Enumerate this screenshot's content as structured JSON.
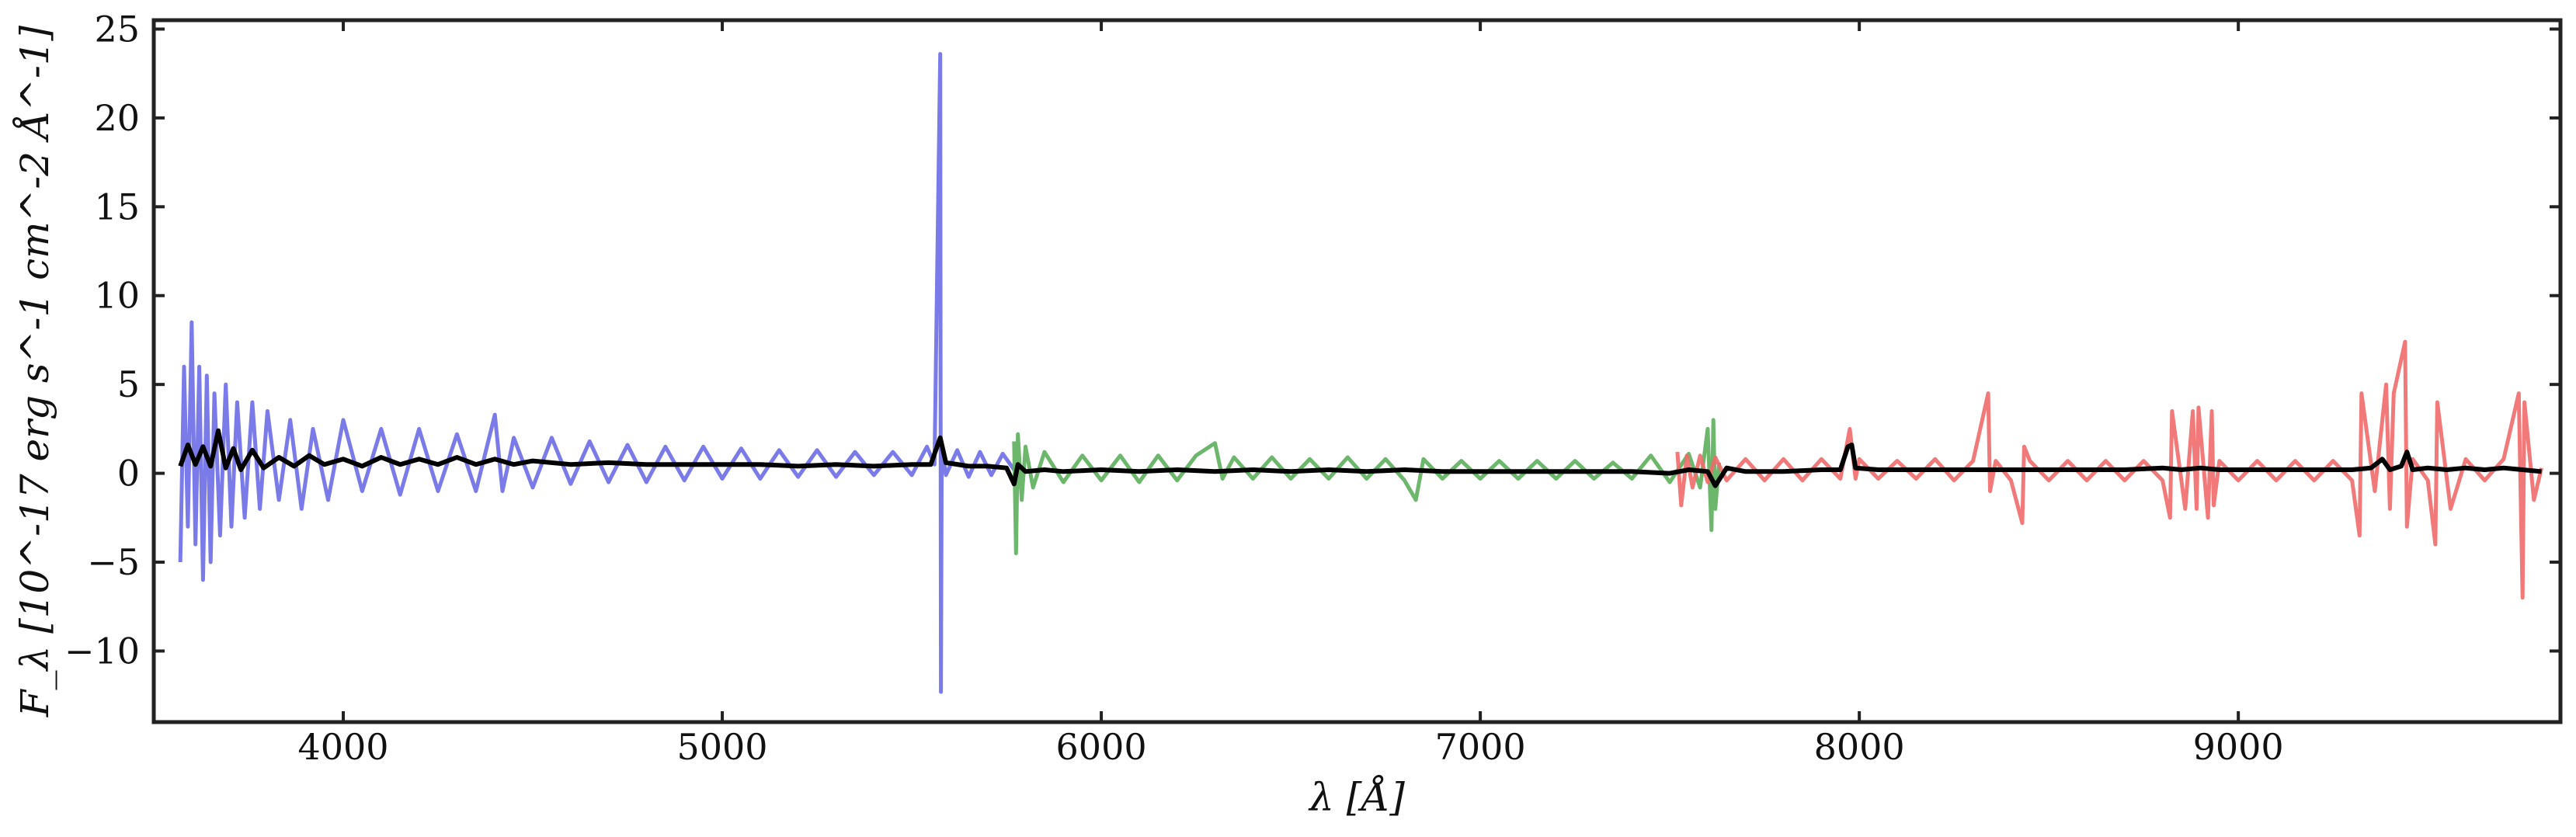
{
  "chart_data": {
    "type": "line",
    "title": "",
    "xlabel": "λ [Å]",
    "ylabel": "F_λ [10^-17 erg s^-1 cm^-2 Å^-1]",
    "xlim": [
      3500,
      9850
    ],
    "ylim": [
      -14,
      25.5
    ],
    "x_ticks": [
      4000,
      5000,
      6000,
      7000,
      8000,
      9000
    ],
    "y_ticks": [
      -10,
      -5,
      0,
      5,
      10,
      15,
      20,
      25
    ],
    "grid": false,
    "legend": "none",
    "series": [
      {
        "color": "#6b6be6",
        "opacity": 0.9,
        "x": [
          3570,
          3580,
          3590,
          3600,
          3610,
          3620,
          3630,
          3640,
          3650,
          3660,
          3675,
          3690,
          3705,
          3720,
          3740,
          3760,
          3780,
          3800,
          3830,
          3860,
          3890,
          3920,
          3960,
          4000,
          4050,
          4100,
          4150,
          4200,
          4250,
          4300,
          4350,
          4400,
          4420,
          4450,
          4500,
          4550,
          4600,
          4650,
          4700,
          4750,
          4800,
          4850,
          4900,
          4950,
          5000,
          5050,
          5100,
          5150,
          5200,
          5250,
          5300,
          5350,
          5400,
          5450,
          5500,
          5540,
          5560,
          5575,
          5577,
          5579,
          5581,
          5590,
          5620,
          5650,
          5680,
          5710,
          5740,
          5770
        ],
        "y": [
          -5,
          6,
          -3,
          8.5,
          -4,
          6,
          -6,
          5.5,
          -5,
          4.5,
          -3.5,
          5,
          -3,
          4,
          -2.5,
          4,
          -2,
          3.5,
          -1.5,
          3,
          -2,
          2.5,
          -1.5,
          3,
          -1,
          2.5,
          -1.2,
          2.5,
          -1,
          2.2,
          -1,
          3.3,
          -1,
          2,
          -0.8,
          2,
          -0.6,
          1.8,
          -0.5,
          1.6,
          -0.5,
          1.5,
          -0.4,
          1.5,
          -0.3,
          1.4,
          -0.3,
          1.3,
          -0.2,
          1.3,
          -0.2,
          1.2,
          -0.1,
          1.2,
          -0.1,
          1.5,
          0.5,
          23.6,
          -12.3,
          0.8,
          1.2,
          -0.1,
          1.3,
          -0.2,
          1.2,
          -0.1,
          1.1,
          0.2
        ]
      },
      {
        "color": "#5caf5c",
        "opacity": 0.9,
        "x": [
          5770,
          5775,
          5780,
          5790,
          5800,
          5820,
          5850,
          5900,
          5950,
          6000,
          6050,
          6100,
          6150,
          6200,
          6250,
          6300,
          6320,
          6350,
          6400,
          6450,
          6500,
          6550,
          6600,
          6650,
          6700,
          6750,
          6800,
          6830,
          6850,
          6900,
          6950,
          7000,
          7050,
          7100,
          7150,
          7200,
          7250,
          7300,
          7350,
          7400,
          7450,
          7500,
          7550,
          7580,
          7600,
          7610,
          7615,
          7620,
          7630
        ],
        "y": [
          1.8,
          -4.5,
          2.2,
          -1.5,
          1.5,
          -0.8,
          1.2,
          -0.5,
          1,
          -0.4,
          1,
          -0.5,
          1,
          -0.4,
          1,
          1.7,
          -0.3,
          0.9,
          -0.3,
          0.9,
          -0.3,
          0.8,
          -0.3,
          0.9,
          -0.3,
          0.8,
          -0.4,
          -1.5,
          0.8,
          -0.3,
          0.7,
          -0.3,
          0.7,
          -0.3,
          0.7,
          -0.3,
          0.7,
          -0.3,
          0.6,
          -0.3,
          1,
          -0.5,
          1.1,
          -0.8,
          2.5,
          -3.2,
          3,
          -2,
          0.6
        ]
      },
      {
        "color": "#ef6a6a",
        "opacity": 0.9,
        "x": [
          7520,
          7530,
          7545,
          7560,
          7580,
          7600,
          7620,
          7650,
          7700,
          7750,
          7800,
          7850,
          7900,
          7950,
          7975,
          7990,
          8000,
          8050,
          8100,
          8150,
          8200,
          8250,
          8300,
          8340,
          8345,
          8360,
          8400,
          8430,
          8435,
          8450,
          8500,
          8550,
          8600,
          8650,
          8700,
          8750,
          8800,
          8820,
          8825,
          8860,
          8880,
          8890,
          8895,
          8920,
          8930,
          8935,
          8950,
          9000,
          9050,
          9100,
          9150,
          9200,
          9250,
          9300,
          9320,
          9325,
          9360,
          9390,
          9400,
          9410,
          9440,
          9445,
          9460,
          9500,
          9520,
          9525,
          9560,
          9600,
          9650,
          9700,
          9740,
          9750,
          9755,
          9780,
          9800
        ],
        "y": [
          1.2,
          -1.8,
          1,
          -0.8,
          1,
          -0.5,
          0.9,
          -0.4,
          0.8,
          -0.4,
          0.8,
          -0.4,
          0.8,
          -0.3,
          2.5,
          -0.3,
          0.8,
          -0.3,
          0.7,
          -0.3,
          0.8,
          -0.4,
          0.7,
          4.5,
          -1,
          0.7,
          -0.4,
          -2.8,
          1.5,
          0.7,
          -0.4,
          0.7,
          -0.4,
          0.7,
          -0.4,
          0.7,
          -0.4,
          -2.5,
          3.5,
          -2,
          3.5,
          -2,
          3.7,
          -2.5,
          3.5,
          -1.8,
          0.7,
          -0.4,
          0.7,
          -0.4,
          0.7,
          -0.4,
          0.7,
          -0.4,
          -3.5,
          4.5,
          -1,
          5,
          -2,
          4.5,
          7.4,
          -3,
          0.8,
          -0.4,
          -4,
          4,
          -2,
          0.8,
          -0.4,
          0.8,
          4.5,
          -7,
          4,
          -1.5,
          0.3
        ]
      },
      {
        "color": "#000000",
        "opacity": 1,
        "x": [
          3570,
          3590,
          3610,
          3630,
          3650,
          3670,
          3690,
          3710,
          3730,
          3760,
          3790,
          3830,
          3870,
          3910,
          3950,
          4000,
          4050,
          4100,
          4150,
          4200,
          4250,
          4300,
          4350,
          4400,
          4450,
          4500,
          4600,
          4700,
          4800,
          4900,
          5000,
          5100,
          5200,
          5300,
          5400,
          5500,
          5550,
          5575,
          5590,
          5650,
          5700,
          5750,
          5770,
          5780,
          5800,
          5850,
          5900,
          6000,
          6100,
          6200,
          6300,
          6400,
          6500,
          6600,
          6700,
          6800,
          6900,
          7000,
          7100,
          7200,
          7300,
          7400,
          7500,
          7550,
          7600,
          7620,
          7650,
          7700,
          7800,
          7900,
          7950,
          7970,
          7980,
          7990,
          8050,
          8100,
          8200,
          8300,
          8400,
          8500,
          8600,
          8700,
          8800,
          8850,
          8900,
          8950,
          9000,
          9100,
          9200,
          9300,
          9350,
          9380,
          9400,
          9430,
          9445,
          9460,
          9500,
          9550,
          9600,
          9650,
          9700,
          9750,
          9800
        ],
        "y": [
          0.4,
          1.6,
          0.5,
          1.5,
          0.4,
          2.4,
          0.3,
          1.4,
          0.2,
          1.3,
          0.3,
          0.9,
          0.4,
          1,
          0.5,
          0.8,
          0.4,
          0.9,
          0.5,
          0.8,
          0.5,
          0.9,
          0.5,
          0.8,
          0.5,
          0.7,
          0.5,
          0.6,
          0.5,
          0.5,
          0.5,
          0.5,
          0.4,
          0.5,
          0.4,
          0.5,
          0.5,
          2,
          0.6,
          0.4,
          0.4,
          0.3,
          -0.6,
          0.5,
          0.1,
          0.2,
          0.1,
          0.2,
          0.1,
          0.2,
          0.1,
          0.2,
          0.1,
          0.2,
          0.1,
          0.2,
          0.1,
          0.1,
          0.1,
          0.1,
          0.1,
          0.1,
          0,
          0.2,
          0.1,
          -0.7,
          0.3,
          0.1,
          0.1,
          0.2,
          0.2,
          1.5,
          1.6,
          0.3,
          0.2,
          0.2,
          0.2,
          0.2,
          0.2,
          0.2,
          0.2,
          0.2,
          0.3,
          0.2,
          0.3,
          0.2,
          0.2,
          0.2,
          0.2,
          0.2,
          0.3,
          0.8,
          0.2,
          0.4,
          1.2,
          0.2,
          0.3,
          0.2,
          0.3,
          0.2,
          0.3,
          0.2,
          0.1
        ]
      }
    ]
  }
}
